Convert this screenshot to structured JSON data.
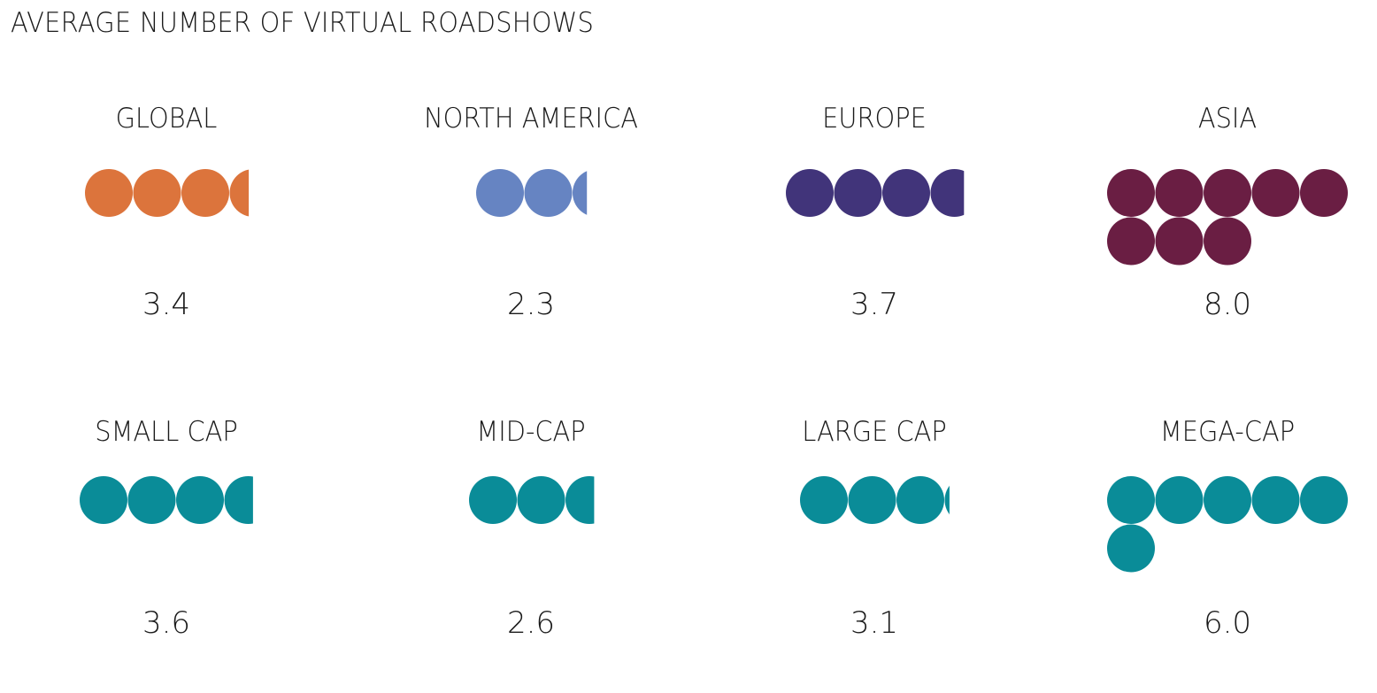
{
  "chart_data": {
    "type": "pictogram",
    "title": "AVERAGE NUMBER OF VIRTUAL ROADSHOWS",
    "panels": [
      {
        "label": "GLOBAL",
        "value": 3.4,
        "value_text": "3.4",
        "color": "#DC743C"
      },
      {
        "label": "NORTH AMERICA",
        "value": 2.3,
        "value_text": "2.3",
        "color": "#6684C2"
      },
      {
        "label": "EUROPE",
        "value": 3.7,
        "value_text": "3.7",
        "color": "#41347A"
      },
      {
        "label": "ASIA",
        "value": 8.0,
        "value_text": "8.0",
        "color": "#6A1E43"
      },
      {
        "label": "SMALL CAP",
        "value": 3.6,
        "value_text": "3.6",
        "color": "#0A8C98"
      },
      {
        "label": "MID-CAP",
        "value": 2.6,
        "value_text": "2.6",
        "color": "#0A8C98"
      },
      {
        "label": "LARGE CAP",
        "value": 3.1,
        "value_text": "3.1",
        "color": "#0A8C98"
      },
      {
        "label": "MEGA-CAP",
        "value": 6.0,
        "value_text": "6.0",
        "color": "#0A8C98"
      }
    ]
  }
}
